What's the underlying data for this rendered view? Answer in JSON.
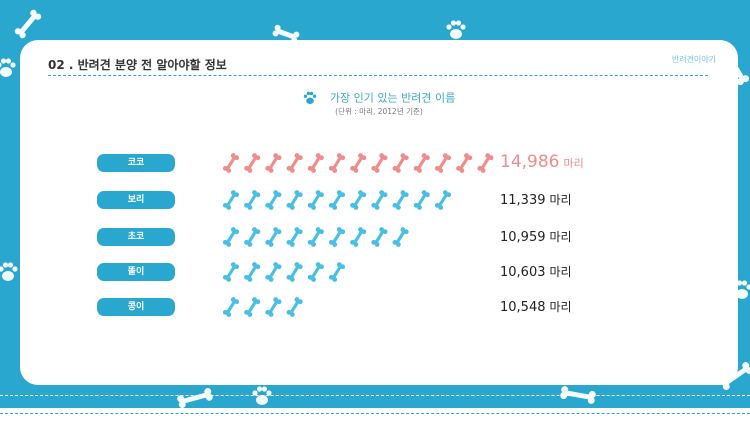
{
  "header": {
    "title": "02 . 반려견 분양 전 알아야할 정보",
    "brand": "반려견이야기"
  },
  "chart_data": {
    "type": "bar",
    "title": "가장 인기 있는 반려견 이름",
    "subtitle": "(단위 : 마리, 2012년 기준)",
    "unit": "마리",
    "categories": [
      "코코",
      "보리",
      "초코",
      "똘이",
      "콩이"
    ],
    "values": [
      14986,
      11339,
      10959,
      10603,
      10548
    ],
    "value_labels": [
      "14,986",
      "11,339",
      "10,959",
      "10,603",
      "10,548"
    ],
    "bone_counts": [
      13,
      11,
      9,
      6,
      4
    ],
    "highlight_index": 0,
    "colors": {
      "highlight": "#ef8c8c",
      "normal": "#48bfe3",
      "pill": "#29a7cf"
    }
  },
  "icons": {
    "chart_title": "paw-icon",
    "bars": "bone-icon"
  }
}
